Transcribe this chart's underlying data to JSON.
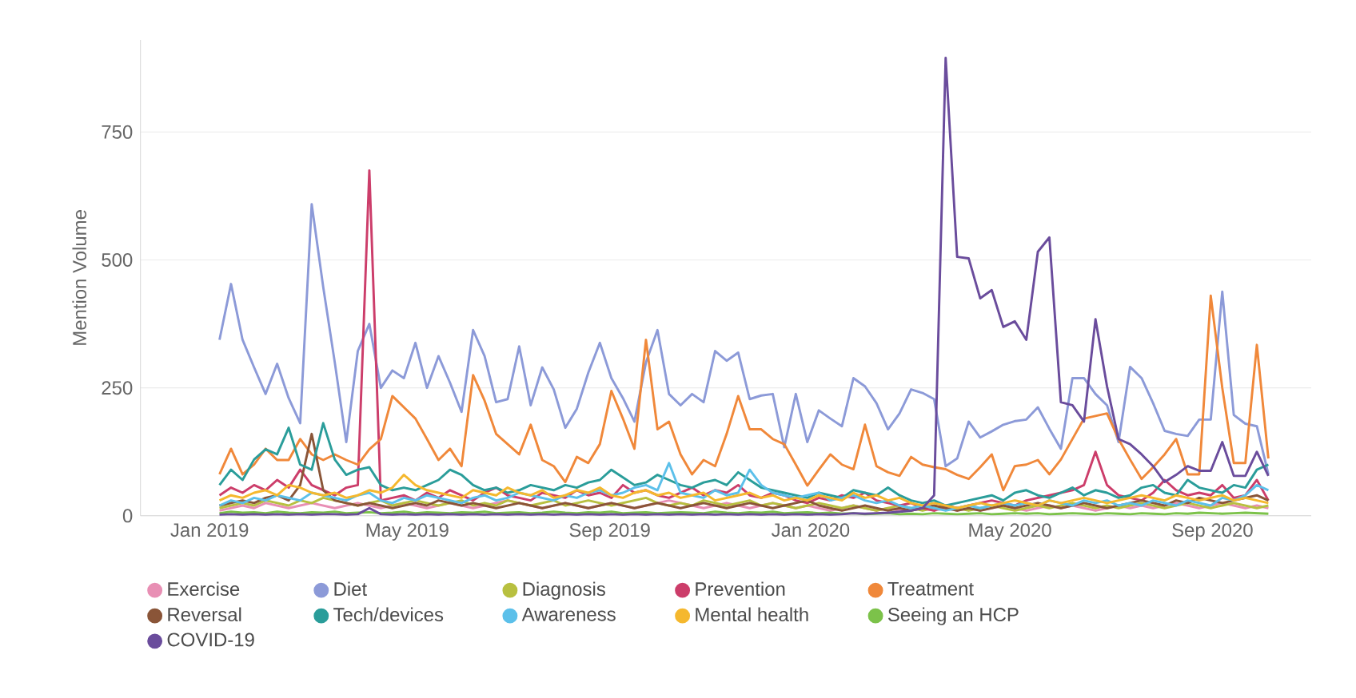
{
  "chart_data": {
    "type": "line",
    "ylabel": "Mention Volume",
    "grid": "y",
    "legend": "bottom",
    "xlim": [
      "2018-11-20",
      "2020-10-31"
    ],
    "ylim": [
      0,
      930
    ],
    "yticks": [
      0,
      250,
      500,
      750
    ],
    "xticks": [
      {
        "value": "2019-01-01",
        "label": "Jan 2019"
      },
      {
        "value": "2019-05-01",
        "label": "May 2019"
      },
      {
        "value": "2019-09-01",
        "label": "Sep 2019"
      },
      {
        "value": "2020-01-01",
        "label": "Jan 2020"
      },
      {
        "value": "2020-05-01",
        "label": "May 2020"
      },
      {
        "value": "2020-09-01",
        "label": "Sep 2020"
      }
    ],
    "x": [
      "2019-01-07",
      "2019-01-14",
      "2019-01-21",
      "2019-01-28",
      "2019-02-04",
      "2019-02-11",
      "2019-02-18",
      "2019-02-25",
      "2019-03-04",
      "2019-03-11",
      "2019-03-18",
      "2019-03-25",
      "2019-04-01",
      "2019-04-08",
      "2019-04-15",
      "2019-04-22",
      "2019-04-29",
      "2019-05-06",
      "2019-05-13",
      "2019-05-20",
      "2019-05-27",
      "2019-06-03",
      "2019-06-10",
      "2019-06-17",
      "2019-06-24",
      "2019-07-01",
      "2019-07-08",
      "2019-07-15",
      "2019-07-22",
      "2019-07-29",
      "2019-08-05",
      "2019-08-12",
      "2019-08-19",
      "2019-08-26",
      "2019-09-02",
      "2019-09-09",
      "2019-09-16",
      "2019-09-23",
      "2019-09-30",
      "2019-10-07",
      "2019-10-14",
      "2019-10-21",
      "2019-10-28",
      "2019-11-04",
      "2019-11-11",
      "2019-11-18",
      "2019-11-25",
      "2019-12-02",
      "2019-12-09",
      "2019-12-16",
      "2019-12-23",
      "2019-12-30",
      "2020-01-06",
      "2020-01-13",
      "2020-01-20",
      "2020-01-27",
      "2020-02-03",
      "2020-02-10",
      "2020-02-17",
      "2020-02-24",
      "2020-03-02",
      "2020-03-09",
      "2020-03-16",
      "2020-03-23",
      "2020-03-30",
      "2020-04-06",
      "2020-04-13",
      "2020-04-20",
      "2020-04-27",
      "2020-05-04",
      "2020-05-11",
      "2020-05-18",
      "2020-05-25",
      "2020-06-01",
      "2020-06-08",
      "2020-06-15",
      "2020-06-22",
      "2020-06-29",
      "2020-07-06",
      "2020-07-13",
      "2020-07-20",
      "2020-07-27",
      "2020-08-03",
      "2020-08-10",
      "2020-08-17",
      "2020-08-24",
      "2020-08-31",
      "2020-09-07",
      "2020-09-14",
      "2020-09-21",
      "2020-09-28",
      "2020-10-05"
    ],
    "series": [
      {
        "name": "Exercise",
        "color": "#e88fb4",
        "values": [
          10,
          15,
          20,
          15,
          25,
          20,
          15,
          20,
          25,
          20,
          15,
          20,
          25,
          20,
          15,
          20,
          25,
          20,
          15,
          20,
          25,
          20,
          15,
          20,
          25,
          30,
          25,
          20,
          15,
          20,
          25,
          20,
          15,
          20,
          25,
          20,
          15,
          20,
          25,
          30,
          25,
          20,
          15,
          20,
          25,
          20,
          15,
          20,
          25,
          20,
          15,
          20,
          15,
          10,
          15,
          20,
          15,
          10,
          15,
          10,
          10,
          15,
          10,
          15,
          10,
          15,
          10,
          15,
          20,
          15,
          10,
          15,
          20,
          15,
          20,
          15,
          10,
          15,
          20,
          15,
          20,
          15,
          20,
          25,
          20,
          15,
          20,
          25,
          20,
          15,
          20,
          15
        ]
      },
      {
        "name": "Diet",
        "color": "#8c9ad8",
        "values": [
          344,
          453,
          344,
          290,
          238,
          297,
          230,
          181,
          609,
          447,
          300,
          144,
          322,
          375,
          250,
          284,
          269,
          338,
          250,
          312,
          260,
          203,
          363,
          312,
          222,
          228,
          331,
          216,
          290,
          247,
          172,
          209,
          280,
          338,
          269,
          230,
          184,
          300,
          363,
          238,
          216,
          238,
          222,
          322,
          303,
          319,
          228,
          235,
          238,
          134,
          238,
          144,
          206,
          190,
          175,
          269,
          253,
          220,
          169,
          200,
          247,
          240,
          228,
          97,
          112,
          184,
          153,
          165,
          178,
          185,
          188,
          212,
          170,
          131,
          269,
          269,
          238,
          216,
          144,
          291,
          269,
          220,
          166,
          160,
          156,
          188,
          188,
          438,
          197,
          180,
          175,
          81
        ]
      },
      {
        "name": "Diagnosis",
        "color": "#b8c040",
        "values": [
          15,
          20,
          25,
          20,
          30,
          25,
          20,
          30,
          25,
          35,
          30,
          25,
          20,
          25,
          30,
          20,
          25,
          30,
          25,
          20,
          25,
          30,
          20,
          25,
          20,
          30,
          25,
          20,
          25,
          30,
          20,
          25,
          30,
          25,
          20,
          25,
          30,
          35,
          25,
          20,
          25,
          20,
          30,
          25,
          20,
          25,
          30,
          20,
          25,
          20,
          15,
          20,
          25,
          20,
          15,
          20,
          15,
          10,
          15,
          20,
          15,
          10,
          15,
          20,
          15,
          10,
          15,
          20,
          15,
          10,
          15,
          20,
          15,
          20,
          25,
          20,
          15,
          20,
          15,
          20,
          25,
          20,
          15,
          20,
          25,
          20,
          15,
          20,
          25,
          20,
          15,
          20
        ]
      },
      {
        "name": "Prevention",
        "color": "#cc3d6a",
        "values": [
          40,
          55,
          45,
          60,
          50,
          70,
          55,
          90,
          60,
          50,
          40,
          55,
          60,
          675,
          30,
          35,
          40,
          30,
          45,
          35,
          50,
          40,
          30,
          45,
          55,
          40,
          35,
          30,
          45,
          40,
          35,
          50,
          40,
          45,
          35,
          60,
          45,
          50,
          40,
          35,
          45,
          55,
          40,
          50,
          45,
          60,
          40,
          35,
          45,
          40,
          30,
          25,
          35,
          30,
          40,
          35,
          45,
          30,
          25,
          20,
          25,
          15,
          10,
          20,
          15,
          20,
          25,
          30,
          25,
          20,
          30,
          35,
          40,
          45,
          50,
          60,
          125,
          60,
          40,
          35,
          30,
          45,
          70,
          50,
          40,
          45,
          40,
          60,
          35,
          40,
          70,
          30
        ]
      },
      {
        "name": "Treatment",
        "color": "#f0883a",
        "values": [
          81,
          131,
          81,
          100,
          131,
          109,
          109,
          150,
          120,
          109,
          120,
          109,
          100,
          130,
          150,
          234,
          212,
          190,
          150,
          109,
          131,
          97,
          275,
          225,
          160,
          140,
          120,
          178,
          109,
          97,
          66,
          115,
          103,
          140,
          244,
          190,
          131,
          344,
          169,
          184,
          120,
          81,
          109,
          97,
          160,
          234,
          169,
          169,
          150,
          140,
          100,
          59,
          90,
          120,
          100,
          91,
          178,
          97,
          85,
          78,
          115,
          100,
          95,
          91,
          80,
          72,
          95,
          120,
          50,
          97,
          100,
          109,
          81,
          110,
          150,
          190,
          195,
          200,
          150,
          110,
          72,
          95,
          120,
          150,
          81,
          81,
          430,
          250,
          103,
          103,
          334,
          112
        ]
      },
      {
        "name": "Reversal",
        "color": "#8a5538",
        "values": [
          20,
          25,
          30,
          25,
          35,
          40,
          30,
          60,
          160,
          50,
          30,
          25,
          20,
          25,
          20,
          15,
          20,
          25,
          20,
          30,
          25,
          20,
          25,
          20,
          15,
          20,
          25,
          20,
          15,
          20,
          25,
          20,
          15,
          20,
          25,
          20,
          15,
          20,
          25,
          20,
          15,
          20,
          25,
          20,
          15,
          20,
          25,
          20,
          15,
          20,
          25,
          30,
          20,
          15,
          10,
          15,
          20,
          15,
          10,
          15,
          10,
          15,
          20,
          15,
          10,
          15,
          10,
          15,
          20,
          15,
          20,
          25,
          20,
          15,
          20,
          25,
          20,
          15,
          20,
          25,
          30,
          25,
          20,
          30,
          25,
          35,
          30,
          25,
          30,
          35,
          40,
          30
        ]
      },
      {
        "name": "Tech/devices",
        "color": "#2a9d9a",
        "values": [
          60,
          90,
          70,
          110,
          130,
          120,
          172,
          100,
          90,
          181,
          110,
          80,
          90,
          95,
          60,
          50,
          55,
          50,
          60,
          70,
          90,
          80,
          60,
          50,
          55,
          45,
          50,
          60,
          55,
          50,
          60,
          55,
          65,
          70,
          90,
          75,
          60,
          65,
          80,
          70,
          60,
          55,
          65,
          70,
          60,
          85,
          70,
          55,
          50,
          45,
          40,
          35,
          45,
          40,
          35,
          50,
          45,
          40,
          55,
          40,
          30,
          25,
          30,
          20,
          25,
          30,
          35,
          40,
          30,
          45,
          50,
          40,
          35,
          45,
          55,
          40,
          50,
          45,
          35,
          40,
          55,
          60,
          45,
          40,
          70,
          55,
          50,
          45,
          60,
          55,
          90,
          100
        ]
      },
      {
        "name": "Awareness",
        "color": "#5cc0ea",
        "values": [
          20,
          30,
          25,
          35,
          30,
          40,
          35,
          30,
          45,
          40,
          35,
          30,
          40,
          45,
          30,
          25,
          35,
          30,
          40,
          35,
          30,
          25,
          35,
          40,
          30,
          35,
          45,
          40,
          35,
          30,
          40,
          35,
          45,
          50,
          40,
          45,
          55,
          60,
          50,
          103,
          45,
          40,
          35,
          50,
          40,
          45,
          90,
          60,
          45,
          40,
          35,
          40,
          45,
          30,
          35,
          40,
          30,
          25,
          30,
          20,
          15,
          20,
          15,
          10,
          15,
          20,
          15,
          20,
          25,
          20,
          25,
          20,
          30,
          25,
          20,
          30,
          25,
          30,
          20,
          25,
          20,
          30,
          25,
          20,
          30,
          25,
          20,
          35,
          30,
          40,
          60,
          50
        ]
      },
      {
        "name": "Mental health",
        "color": "#f5b82e",
        "values": [
          30,
          40,
          35,
          45,
          50,
          40,
          60,
          55,
          45,
          40,
          45,
          35,
          40,
          50,
          45,
          55,
          80,
          60,
          50,
          45,
          40,
          35,
          50,
          45,
          40,
          55,
          45,
          40,
          50,
          35,
          40,
          50,
          45,
          55,
          40,
          35,
          45,
          50,
          40,
          45,
          35,
          40,
          45,
          30,
          35,
          40,
          45,
          35,
          40,
          30,
          35,
          30,
          40,
          35,
          30,
          45,
          35,
          40,
          30,
          35,
          25,
          20,
          25,
          20,
          15,
          20,
          25,
          20,
          25,
          30,
          25,
          20,
          30,
          25,
          30,
          35,
          30,
          25,
          30,
          35,
          40,
          35,
          30,
          40,
          35,
          30,
          35,
          40,
          30,
          35,
          30,
          25
        ]
      },
      {
        "name": "Seeing an HCP",
        "color": "#7cc24a",
        "values": [
          5,
          8,
          6,
          7,
          5,
          8,
          6,
          5,
          7,
          6,
          8,
          5,
          6,
          7,
          5,
          6,
          8,
          5,
          7,
          6,
          5,
          7,
          6,
          8,
          5,
          6,
          7,
          5,
          6,
          8,
          6,
          5,
          7,
          6,
          8,
          5,
          6,
          7,
          5,
          6,
          7,
          6,
          5,
          8,
          6,
          5,
          7,
          6,
          8,
          5,
          6,
          7,
          5,
          6,
          4,
          5,
          3,
          4,
          5,
          3,
          4,
          3,
          5,
          4,
          3,
          4,
          5,
          3,
          4,
          5,
          4,
          5,
          3,
          4,
          5,
          4,
          3,
          5,
          4,
          3,
          5,
          4,
          3,
          5,
          4,
          6,
          5,
          4,
          5,
          6,
          5,
          4
        ]
      },
      {
        "name": "COVID-19",
        "color": "#6a4c9c",
        "values": [
          2,
          3,
          2,
          3,
          2,
          3,
          2,
          3,
          2,
          3,
          3,
          2,
          3,
          15,
          3,
          2,
          3,
          2,
          3,
          2,
          3,
          2,
          3,
          2,
          3,
          2,
          3,
          2,
          3,
          2,
          3,
          2,
          3,
          2,
          3,
          2,
          3,
          2,
          3,
          2,
          3,
          2,
          3,
          2,
          3,
          2,
          3,
          2,
          3,
          2,
          3,
          2,
          3,
          2,
          3,
          5,
          4,
          5,
          6,
          8,
          10,
          15,
          40,
          895,
          506,
          503,
          425,
          441,
          369,
          380,
          344,
          516,
          544,
          222,
          216,
          184,
          384,
          253,
          150,
          140,
          120,
          97,
          66,
          80,
          97,
          88,
          88,
          144,
          78,
          78,
          125,
          78
        ]
      }
    ]
  }
}
